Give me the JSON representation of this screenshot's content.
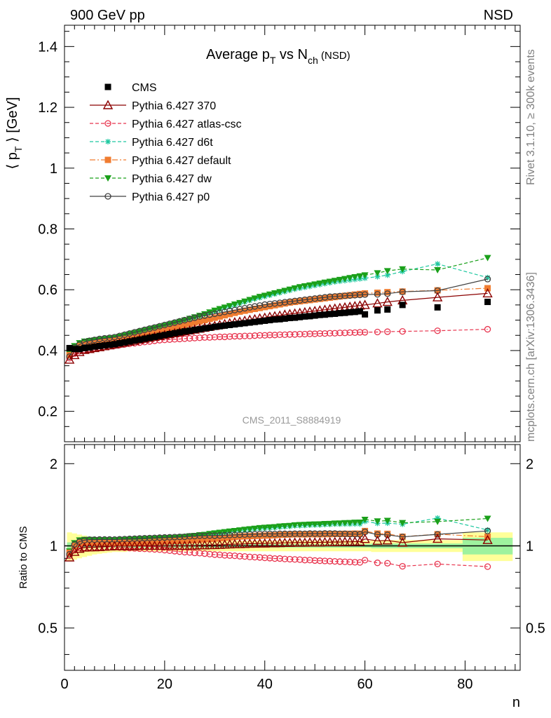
{
  "header": {
    "left": "900 GeV pp",
    "right": "NSD"
  },
  "title": {
    "main": "Average p",
    "sub1": "T",
    "mid": " vs N",
    "sub2": "ch",
    "tail": " (NSD)"
  },
  "ylabel_top": {
    "a": "⟨ p",
    "sub": "T",
    "b": " ⟩ [GeV]"
  },
  "ylabel_bottom": "Ratio to CMS",
  "xlabel": "n",
  "analysis_id": "CMS_2011_S8884919",
  "side_texts": {
    "rivet": "Rivet 3.1.10, ≥ 300k events",
    "mcplots": "mcplots.cern.ch [arXiv:1306.3436]"
  },
  "ticks": {
    "x": [
      "0",
      "20",
      "40",
      "60",
      "80"
    ],
    "y_top": [
      "0.2",
      "0.4",
      "0.6",
      "0.8",
      "1",
      "1.2",
      "1.4"
    ],
    "y_bottom": [
      "0.5",
      "1",
      "2"
    ]
  },
  "legend": [
    {
      "label": "CMS",
      "color": "#000000",
      "marker": "square-filled",
      "dash": "none"
    },
    {
      "label": "Pythia 6.427 370",
      "color": "#8b0000",
      "marker": "triangle-open",
      "dash": "solid"
    },
    {
      "label": "Pythia 6.427 atlas-csc",
      "color": "#e8344e",
      "marker": "circle-open",
      "dash": "dashed"
    },
    {
      "label": "Pythia 6.427 d6t",
      "color": "#1ec8a0",
      "marker": "star",
      "dash": "dashed"
    },
    {
      "label": "Pythia 6.427 default",
      "color": "#f07c30",
      "marker": "square-filled",
      "dash": "dashdot"
    },
    {
      "label": "Pythia 6.427 dw",
      "color": "#1aa01a",
      "marker": "triangle-down-filled",
      "dash": "dashed"
    },
    {
      "label": "Pythia 6.427 p0",
      "color": "#404040",
      "marker": "circle-open",
      "dash": "solid"
    }
  ],
  "chart_data": {
    "type": "scatter",
    "xlabel": "n",
    "ylabel": "⟨ pT ⟩ [GeV]",
    "xlim": [
      0,
      91
    ],
    "ylim": [
      0.1,
      1.47
    ],
    "ratio_ylim": [
      0.35,
      2.35
    ],
    "ratio_ylabel": "Ratio to CMS",
    "ratio_log_scale": true,
    "legend_position": "top-left",
    "cms_x": [
      1,
      2,
      3,
      4,
      5,
      6,
      7,
      8,
      9,
      10,
      11,
      12,
      13,
      14,
      15,
      16,
      17,
      18,
      19,
      20,
      21,
      22,
      23,
      24,
      25,
      26,
      27,
      28,
      29,
      30,
      31,
      32,
      33,
      34,
      35,
      36,
      37,
      38,
      39,
      40,
      41,
      42,
      43,
      44,
      45,
      46,
      47,
      48,
      49,
      50,
      51,
      52,
      53,
      54,
      55,
      56,
      57,
      58,
      59,
      60,
      62.5,
      64.5,
      67.5,
      74.5,
      84.5
    ],
    "series": [
      {
        "name": "CMS",
        "values": [
          0.408,
          0.405,
          0.405,
          0.408,
          0.41,
          0.413,
          0.415,
          0.417,
          0.419,
          0.421,
          0.424,
          0.427,
          0.43,
          0.433,
          0.436,
          0.439,
          0.442,
          0.445,
          0.448,
          0.451,
          0.454,
          0.457,
          0.46,
          0.463,
          0.465,
          0.468,
          0.47,
          0.473,
          0.475,
          0.478,
          0.48,
          0.482,
          0.484,
          0.486,
          0.488,
          0.49,
          0.492,
          0.494,
          0.496,
          0.498,
          0.5,
          0.502,
          0.503,
          0.505,
          0.507,
          0.508,
          0.51,
          0.512,
          0.513,
          0.515,
          0.517,
          0.518,
          0.52,
          0.521,
          0.523,
          0.524,
          0.526,
          0.527,
          0.529,
          0.519,
          0.532,
          0.535,
          0.55,
          0.542,
          0.56
        ]
      },
      {
        "name": "Pythia 6.427 370",
        "values": [
          0.37,
          0.385,
          0.395,
          0.402,
          0.405,
          0.408,
          0.411,
          0.414,
          0.417,
          0.42,
          0.423,
          0.426,
          0.429,
          0.432,
          0.436,
          0.439,
          0.442,
          0.445,
          0.448,
          0.451,
          0.454,
          0.457,
          0.46,
          0.463,
          0.466,
          0.469,
          0.472,
          0.475,
          0.478,
          0.481,
          0.484,
          0.487,
          0.49,
          0.493,
          0.495,
          0.498,
          0.501,
          0.503,
          0.506,
          0.508,
          0.511,
          0.513,
          0.515,
          0.518,
          0.52,
          0.522,
          0.524,
          0.526,
          0.528,
          0.53,
          0.532,
          0.534,
          0.536,
          0.538,
          0.54,
          0.542,
          0.544,
          0.546,
          0.548,
          0.55,
          0.555,
          0.56,
          0.565,
          0.575,
          0.588
        ]
      },
      {
        "name": "Pythia 6.427 atlas-csc",
        "values": [
          0.375,
          0.39,
          0.398,
          0.402,
          0.405,
          0.408,
          0.41,
          0.412,
          0.414,
          0.416,
          0.418,
          0.42,
          0.422,
          0.424,
          0.426,
          0.428,
          0.43,
          0.432,
          0.434,
          0.435,
          0.436,
          0.437,
          0.438,
          0.439,
          0.44,
          0.441,
          0.442,
          0.443,
          0.443,
          0.444,
          0.445,
          0.445,
          0.446,
          0.447,
          0.447,
          0.448,
          0.448,
          0.449,
          0.45,
          0.45,
          0.451,
          0.451,
          0.452,
          0.452,
          0.453,
          0.453,
          0.454,
          0.454,
          0.455,
          0.455,
          0.456,
          0.456,
          0.457,
          0.457,
          0.458,
          0.458,
          0.459,
          0.459,
          0.46,
          0.46,
          0.461,
          0.462,
          0.463,
          0.465,
          0.47
        ]
      },
      {
        "name": "Pythia 6.427 d6t",
        "values": [
          0.39,
          0.415,
          0.425,
          0.43,
          0.432,
          0.434,
          0.436,
          0.438,
          0.44,
          0.442,
          0.445,
          0.449,
          0.453,
          0.457,
          0.461,
          0.465,
          0.469,
          0.473,
          0.477,
          0.481,
          0.485,
          0.489,
          0.494,
          0.499,
          0.504,
          0.509,
          0.514,
          0.519,
          0.524,
          0.53,
          0.535,
          0.54,
          0.545,
          0.55,
          0.555,
          0.56,
          0.565,
          0.57,
          0.574,
          0.578,
          0.582,
          0.586,
          0.59,
          0.594,
          0.598,
          0.602,
          0.605,
          0.608,
          0.611,
          0.614,
          0.617,
          0.62,
          0.623,
          0.626,
          0.628,
          0.63,
          0.632,
          0.634,
          0.636,
          0.638,
          0.643,
          0.648,
          0.66,
          0.685,
          0.64
        ]
      },
      {
        "name": "Pythia 6.427 default",
        "values": [
          0.385,
          0.405,
          0.415,
          0.42,
          0.422,
          0.424,
          0.426,
          0.428,
          0.43,
          0.432,
          0.435,
          0.438,
          0.441,
          0.444,
          0.448,
          0.452,
          0.456,
          0.46,
          0.464,
          0.468,
          0.472,
          0.476,
          0.48,
          0.484,
          0.488,
          0.492,
          0.496,
          0.5,
          0.504,
          0.508,
          0.512,
          0.516,
          0.52,
          0.524,
          0.528,
          0.531,
          0.534,
          0.537,
          0.54,
          0.543,
          0.546,
          0.549,
          0.552,
          0.555,
          0.558,
          0.56,
          0.562,
          0.564,
          0.566,
          0.568,
          0.57,
          0.572,
          0.574,
          0.576,
          0.578,
          0.58,
          0.582,
          0.584,
          0.586,
          0.588,
          0.59,
          0.592,
          0.594,
          0.598,
          0.605
        ]
      },
      {
        "name": "Pythia 6.427 dw",
        "values": [
          0.39,
          0.415,
          0.425,
          0.43,
          0.432,
          0.434,
          0.436,
          0.438,
          0.44,
          0.442,
          0.446,
          0.45,
          0.454,
          0.458,
          0.462,
          0.466,
          0.47,
          0.474,
          0.478,
          0.482,
          0.486,
          0.49,
          0.495,
          0.5,
          0.505,
          0.51,
          0.515,
          0.52,
          0.526,
          0.532,
          0.537,
          0.542,
          0.547,
          0.552,
          0.557,
          0.562,
          0.567,
          0.572,
          0.577,
          0.581,
          0.585,
          0.589,
          0.593,
          0.597,
          0.601,
          0.605,
          0.609,
          0.612,
          0.615,
          0.618,
          0.621,
          0.624,
          0.627,
          0.63,
          0.633,
          0.636,
          0.639,
          0.642,
          0.645,
          0.648,
          0.655,
          0.662,
          0.668,
          0.665,
          0.705
        ]
      },
      {
        "name": "Pythia 6.427 p0",
        "values": [
          0.38,
          0.41,
          0.42,
          0.428,
          0.432,
          0.435,
          0.438,
          0.44,
          0.442,
          0.444,
          0.448,
          0.452,
          0.456,
          0.46,
          0.464,
          0.468,
          0.472,
          0.476,
          0.48,
          0.484,
          0.488,
          0.492,
          0.496,
          0.5,
          0.504,
          0.508,
          0.512,
          0.515,
          0.518,
          0.521,
          0.524,
          0.527,
          0.53,
          0.533,
          0.536,
          0.539,
          0.542,
          0.545,
          0.548,
          0.551,
          0.553,
          0.555,
          0.557,
          0.559,
          0.561,
          0.563,
          0.565,
          0.567,
          0.569,
          0.571,
          0.573,
          0.575,
          0.577,
          0.578,
          0.579,
          0.58,
          0.581,
          0.582,
          0.583,
          0.584,
          0.585,
          0.587,
          0.593,
          0.597,
          0.635
        ]
      }
    ],
    "band": {
      "yellow_halfwidth": [
        0.12,
        0.11,
        0.1,
        0.09,
        0.08,
        0.07,
        0.065,
        0.06,
        0.055,
        0.05,
        0.05,
        0.05,
        0.045,
        0.045,
        0.045,
        0.045,
        0.045,
        0.045,
        0.045,
        0.045,
        0.045,
        0.045,
        0.045,
        0.045,
        0.045,
        0.045,
        0.045,
        0.045,
        0.045,
        0.045,
        0.045,
        0.045,
        0.045,
        0.045,
        0.045,
        0.045,
        0.045,
        0.045,
        0.045,
        0.045,
        0.045,
        0.045,
        0.045,
        0.045,
        0.045,
        0.045,
        0.045,
        0.045,
        0.045,
        0.045,
        0.045,
        0.045,
        0.045,
        0.045,
        0.045,
        0.045,
        0.045,
        0.045,
        0.045,
        0.045,
        0.05,
        0.05,
        0.05,
        0.05,
        0.12
      ],
      "green_halfwidth": [
        0.03,
        0.02,
        0.015,
        0.015,
        0.015,
        0.015,
        0.015,
        0.015,
        0.015,
        0.015,
        0.015,
        0.015,
        0.015,
        0.015,
        0.015,
        0.015,
        0.015,
        0.015,
        0.015,
        0.015,
        0.015,
        0.015,
        0.015,
        0.015,
        0.015,
        0.015,
        0.015,
        0.015,
        0.015,
        0.015,
        0.015,
        0.015,
        0.015,
        0.015,
        0.015,
        0.015,
        0.015,
        0.015,
        0.015,
        0.015,
        0.015,
        0.015,
        0.015,
        0.015,
        0.015,
        0.015,
        0.015,
        0.015,
        0.015,
        0.015,
        0.015,
        0.015,
        0.015,
        0.015,
        0.015,
        0.015,
        0.015,
        0.015,
        0.015,
        0.015,
        0.02,
        0.02,
        0.02,
        0.02,
        0.07
      ]
    }
  }
}
